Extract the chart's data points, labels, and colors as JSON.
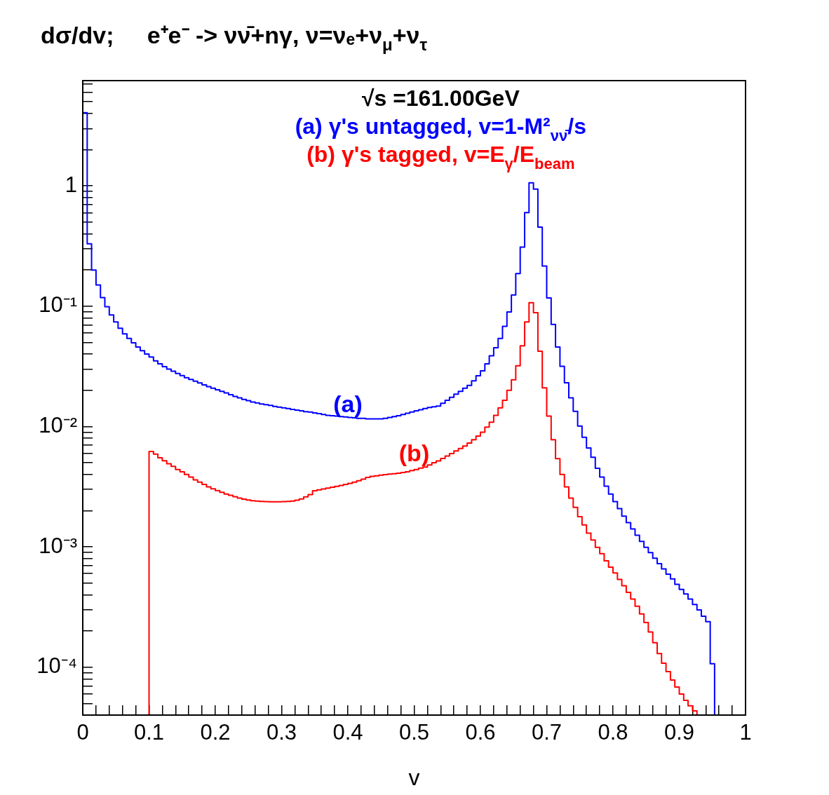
{
  "chart_data": {
    "type": "histogram",
    "title": "dσ/dv;     e⁺e⁻ -> νν̄+nγ, ν=νₑ+ν$_{μ}$+ν$_{τ}$",
    "xlabel": "v",
    "log": true,
    "xlim": [
      0,
      1
    ],
    "ylim": [
      4e-05,
      7.5
    ],
    "xticks": [
      0,
      {
        "value": 0.02,
        "label": null
      },
      {
        "value": 0.04,
        "label": null
      },
      {
        "value": 0.06,
        "label": null
      },
      {
        "value": 0.08,
        "label": null
      },
      0.1,
      {
        "value": 0.12,
        "label": null
      },
      {
        "value": 0.14,
        "label": null
      },
      {
        "value": 0.16,
        "label": null
      },
      {
        "value": 0.18,
        "label": null
      },
      0.2,
      {
        "value": 0.22,
        "label": null
      },
      {
        "value": 0.24,
        "label": null
      },
      {
        "value": 0.26,
        "label": null
      },
      {
        "value": 0.28,
        "label": null
      },
      0.3,
      {
        "value": 0.32,
        "label": null
      },
      {
        "value": 0.34,
        "label": null
      },
      {
        "value": 0.36,
        "label": null
      },
      {
        "value": 0.38,
        "label": null
      },
      0.4,
      {
        "value": 0.42,
        "label": null
      },
      {
        "value": 0.44,
        "label": null
      },
      {
        "value": 0.46,
        "label": null
      },
      {
        "value": 0.48,
        "label": null
      },
      0.5,
      {
        "value": 0.52,
        "label": null
      },
      {
        "value": 0.54,
        "label": null
      },
      {
        "value": 0.56,
        "label": null
      },
      {
        "value": 0.58,
        "label": null
      },
      0.6,
      {
        "value": 0.62,
        "label": null
      },
      {
        "value": 0.64,
        "label": null
      },
      {
        "value": 0.66,
        "label": null
      },
      {
        "value": 0.68,
        "label": null
      },
      0.7,
      {
        "value": 0.72,
        "label": null
      },
      {
        "value": 0.74,
        "label": null
      },
      {
        "value": 0.76,
        "label": null
      },
      {
        "value": 0.78,
        "label": null
      },
      0.8,
      {
        "value": 0.82,
        "label": null
      },
      {
        "value": 0.84,
        "label": null
      },
      {
        "value": 0.86,
        "label": null
      },
      {
        "value": 0.88,
        "label": null
      },
      0.9,
      {
        "value": 0.92,
        "label": null
      },
      {
        "value": 0.94,
        "label": null
      },
      {
        "value": 0.96,
        "label": null
      },
      {
        "value": 0.98,
        "label": null
      },
      1
    ],
    "yticks": [
      {
        "value": 4e-05,
        "label": null
      },
      {
        "value": 5e-05,
        "label": null
      },
      {
        "value": 6e-05,
        "label": null
      },
      {
        "value": 7e-05,
        "label": null
      },
      {
        "value": 8e-05,
        "label": null
      },
      {
        "value": 9e-05,
        "label": null
      },
      {
        "value": 0.0001,
        "label": "10⁻⁴"
      },
      {
        "value": 0.0002,
        "label": null
      },
      {
        "value": 0.0003,
        "label": null
      },
      {
        "value": 0.0004,
        "label": null
      },
      {
        "value": 0.0005,
        "label": null
      },
      {
        "value": 0.0006,
        "label": null
      },
      {
        "value": 0.0007,
        "label": null
      },
      {
        "value": 0.0008,
        "label": null
      },
      {
        "value": 0.0009,
        "label": null
      },
      {
        "value": 0.001,
        "label": "10⁻³"
      },
      {
        "value": 0.002,
        "label": null
      },
      {
        "value": 0.003,
        "label": null
      },
      {
        "value": 0.004,
        "label": null
      },
      {
        "value": 0.005,
        "label": null
      },
      {
        "value": 0.006,
        "label": null
      },
      {
        "value": 0.007,
        "label": null
      },
      {
        "value": 0.008,
        "label": null
      },
      {
        "value": 0.009,
        "label": null
      },
      {
        "value": 0.01,
        "label": "10⁻²"
      },
      {
        "value": 0.02,
        "label": null
      },
      {
        "value": 0.03,
        "label": null
      },
      {
        "value": 0.04,
        "label": null
      },
      {
        "value": 0.05,
        "label": null
      },
      {
        "value": 0.06,
        "label": null
      },
      {
        "value": 0.07,
        "label": null
      },
      {
        "value": 0.08,
        "label": null
      },
      {
        "value": 0.09,
        "label": null
      },
      {
        "value": 0.1,
        "label": "10⁻¹"
      },
      {
        "value": 0.2,
        "label": null
      },
      {
        "value": 0.3,
        "label": null
      },
      {
        "value": 0.4,
        "label": null
      },
      {
        "value": 0.5,
        "label": null
      },
      {
        "value": 0.6,
        "label": null
      },
      {
        "value": 0.7,
        "label": null
      },
      {
        "value": 0.8,
        "label": null
      },
      {
        "value": 0.9,
        "label": null
      },
      1,
      {
        "value": 2,
        "label": null
      },
      {
        "value": 3,
        "label": null
      },
      {
        "value": 4,
        "label": null
      },
      {
        "value": 5,
        "label": null
      },
      {
        "value": 6,
        "label": null
      },
      {
        "value": 7,
        "label": null
      }
    ],
    "bins": [
      0,
      0.0067,
      0.0133,
      0.02,
      0.0267,
      0.0333,
      0.04,
      0.0467,
      0.0533,
      0.06,
      0.0667,
      0.0733,
      0.08,
      0.0867,
      0.0933,
      0.1,
      0.1067,
      0.1133,
      0.12,
      0.1267,
      0.1333,
      0.14,
      0.1467,
      0.1533,
      0.16,
      0.1667,
      0.1733,
      0.18,
      0.1867,
      0.1933,
      0.2,
      0.2067,
      0.2133,
      0.22,
      0.2267,
      0.2333,
      0.24,
      0.2467,
      0.2533,
      0.26,
      0.2667,
      0.2733,
      0.28,
      0.2867,
      0.2933,
      0.3,
      0.3067,
      0.3133,
      0.32,
      0.3267,
      0.3333,
      0.34,
      0.3467,
      0.3533,
      0.36,
      0.3667,
      0.3733,
      0.38,
      0.3867,
      0.3933,
      0.4,
      0.4067,
      0.4133,
      0.42,
      0.4267,
      0.4333,
      0.44,
      0.4467,
      0.4533,
      0.46,
      0.4667,
      0.4733,
      0.48,
      0.4867,
      0.4933,
      0.5,
      0.5067,
      0.5133,
      0.52,
      0.5267,
      0.5333,
      0.54,
      0.5467,
      0.5533,
      0.56,
      0.5667,
      0.5733,
      0.58,
      0.5867,
      0.5933,
      0.6,
      0.6067,
      0.6133,
      0.62,
      0.6267,
      0.6333,
      0.64,
      0.6467,
      0.6533,
      0.66,
      0.6667,
      0.6733,
      0.68,
      0.6867,
      0.6933,
      0.7,
      0.7067,
      0.7133,
      0.72,
      0.7267,
      0.7333,
      0.74,
      0.7467,
      0.7533,
      0.76,
      0.7667,
      0.7733,
      0.78,
      0.7867,
      0.7933,
      0.8,
      0.8067,
      0.8133,
      0.82,
      0.8267,
      0.8333,
      0.84,
      0.8467,
      0.8533,
      0.86,
      0.8667,
      0.8733,
      0.88,
      0.8867,
      0.8933,
      0.9,
      0.9067,
      0.9133,
      0.92,
      0.9267,
      0.9333,
      0.94,
      0.9467,
      0.9533,
      0.96,
      0.9667,
      0.9733,
      0.98,
      0.9867,
      0.9933,
      1
    ],
    "series": [
      {
        "color": "#0000ff",
        "values": [
          4.06,
          0.33,
          0.2,
          0.15,
          0.118,
          0.099,
          0.0845,
          0.074,
          0.0655,
          0.059,
          0.054,
          0.0497,
          0.0458,
          0.0427,
          0.0401,
          0.0378,
          0.0352,
          0.0332,
          0.0315,
          0.03,
          0.0288,
          0.0276,
          0.0265,
          0.0255,
          0.0246,
          0.0238,
          0.023,
          0.0222,
          0.0215,
          0.0208,
          0.0202,
          0.0196,
          0.019,
          0.0184,
          0.0178,
          0.0173,
          0.0168,
          0.0164,
          0.016,
          0.0157,
          0.0154,
          0.0152,
          0.015,
          0.0147,
          0.0145,
          0.0143,
          0.0141,
          0.0139,
          0.0137,
          0.0135,
          0.0133,
          0.0132,
          0.013,
          0.0128,
          0.0126,
          0.0124,
          0.0123,
          0.0122,
          0.0121,
          0.012,
          0.0119,
          0.0118,
          0.0117,
          0.0117,
          0.0116,
          0.0116,
          0.0116,
          0.0116,
          0.0117,
          0.0119,
          0.0121,
          0.0123,
          0.0126,
          0.0129,
          0.0132,
          0.0135,
          0.0138,
          0.0141,
          0.0144,
          0.0146,
          0.0148,
          0.0156,
          0.0165,
          0.0175,
          0.0186,
          0.0196,
          0.0208,
          0.022,
          0.024,
          0.0264,
          0.029,
          0.0332,
          0.0388,
          0.0452,
          0.054,
          0.068,
          0.0897,
          0.124,
          0.187,
          0.31,
          0.6,
          1.06,
          0.94,
          0.454,
          0.216,
          0.117,
          0.0705,
          0.0458,
          0.0317,
          0.0231,
          0.0173,
          0.0134,
          0.0101,
          0.00815,
          0.00663,
          0.00555,
          0.0045,
          0.0038,
          0.0032,
          0.00275,
          0.00238,
          0.00208,
          0.0018,
          0.00159,
          0.00141,
          0.00125,
          0.00111,
          0.00099,
          0.000896,
          0.000804,
          0.000726,
          0.000655,
          0.000593,
          0.000542,
          0.000489,
          0.000443,
          0.000406,
          0.000368,
          0.000332,
          0.000299,
          0.000265,
          0.000239,
          0.000107,
          null,
          null,
          null,
          null,
          null,
          null,
          null
        ]
      },
      {
        "color": "#ff0000",
        "values": [
          null,
          null,
          null,
          null,
          null,
          null,
          null,
          null,
          null,
          null,
          null,
          null,
          null,
          null,
          null,
          0.0062,
          0.0059,
          0.0055,
          0.0052,
          0.0049,
          0.00466,
          0.0044,
          0.0042,
          0.004,
          0.0038,
          0.0036,
          0.00345,
          0.0033,
          0.00315,
          0.00304,
          0.00294,
          0.00284,
          0.00275,
          0.00268,
          0.00261,
          0.00254,
          0.00249,
          0.00245,
          0.00242,
          0.0024,
          0.00239,
          0.00238,
          0.00237,
          0.00237,
          0.00237,
          0.00238,
          0.00239,
          0.0024,
          0.00244,
          0.0025,
          0.0026,
          0.00272,
          0.00293,
          0.00298,
          0.00303,
          0.00308,
          0.00313,
          0.00318,
          0.00324,
          0.0033,
          0.00337,
          0.00345,
          0.00355,
          0.00365,
          0.00378,
          0.00386,
          0.0039,
          0.00394,
          0.00398,
          0.00402,
          0.00406,
          0.0041,
          0.00415,
          0.0042,
          0.0043,
          0.0044,
          0.00452,
          0.0046,
          0.0048,
          0.005,
          0.00517,
          0.00542,
          0.00569,
          0.00597,
          0.00626,
          0.00657,
          0.00689,
          0.0073,
          0.00776,
          0.00835,
          0.00898,
          0.00989,
          0.01087,
          0.0124,
          0.0143,
          0.0165,
          0.02,
          0.0245,
          0.032,
          0.0469,
          0.074,
          0.107,
          0.0884,
          0.0423,
          0.021,
          0.0122,
          0.00778,
          0.0054,
          0.004,
          0.00315,
          0.00254,
          0.00213,
          0.00178,
          0.00152,
          0.0013,
          0.00114,
          0.00099,
          0.000877,
          0.000766,
          0.000679,
          0.000607,
          0.000536,
          0.000475,
          0.000419,
          0.000368,
          0.000321,
          0.000277,
          0.000235,
          0.000196,
          0.00016,
          0.00013,
          0.000108,
          9.18e-05,
          7.82e-05,
          6.84e-05,
          5.98e-05,
          5.3e-05,
          4.78e-05,
          4.33e-05,
          null,
          null,
          null,
          null,
          null,
          null,
          null,
          null,
          null,
          null,
          null
        ]
      }
    ],
    "annotations": [
      "√s =161.00GeV",
      "(a) γ's untagged, v=1-M²$_{νν̄}$/s",
      "(b) γ's tagged, v=E$_{γ}$/E$_{beam}$",
      {
        "text": "(a)",
        "x": 0.4,
        "y": 0.0115
      },
      {
        "text": "(b)",
        "x": 0.5,
        "y": 0.0045
      }
    ]
  }
}
